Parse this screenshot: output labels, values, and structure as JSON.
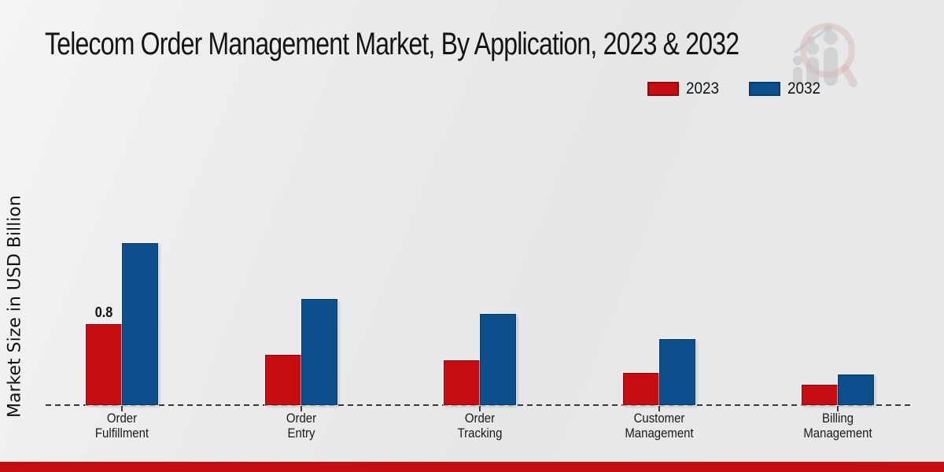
{
  "title": "Telecom Order Management Market, By Application, 2023 & 2032",
  "y_axis_label": "Market Size in USD Billion",
  "legend": {
    "items": [
      {
        "label": "2023",
        "color": "#c60d11",
        "border": "#8a0b0e"
      },
      {
        "label": "2032",
        "color": "#0d4f8c",
        "border": "#093a66"
      }
    ]
  },
  "footer": {
    "accent_bar_color": "#c40d10"
  },
  "watermark": {
    "name": "market-research-chart-magnifier-logo"
  },
  "chart_data": {
    "type": "bar",
    "title": "Telecom Order Management Market, By Application, 2023 & 2032",
    "xlabel": "",
    "ylabel": "Market Size in USD Billion",
    "categories": [
      "Order Fulfillment",
      "Order Entry",
      "Order Tracking",
      "Customer Management",
      "Billing Management"
    ],
    "series": [
      {
        "name": "2023",
        "color": "#c60d11",
        "border": "#8a0b0e",
        "values": [
          0.8,
          0.5,
          0.44,
          0.32,
          0.2
        ]
      },
      {
        "name": "2032",
        "color": "#0d4f8c",
        "border": "#093a66",
        "values": [
          1.6,
          1.05,
          0.9,
          0.65,
          0.3
        ]
      }
    ],
    "annotations": [
      {
        "series": "2023",
        "category": "Order Fulfillment",
        "text": "0.8"
      }
    ],
    "ylim": [
      0,
      1.7
    ],
    "grid": false,
    "legend_position": "top-right",
    "baseline": "dashed"
  }
}
